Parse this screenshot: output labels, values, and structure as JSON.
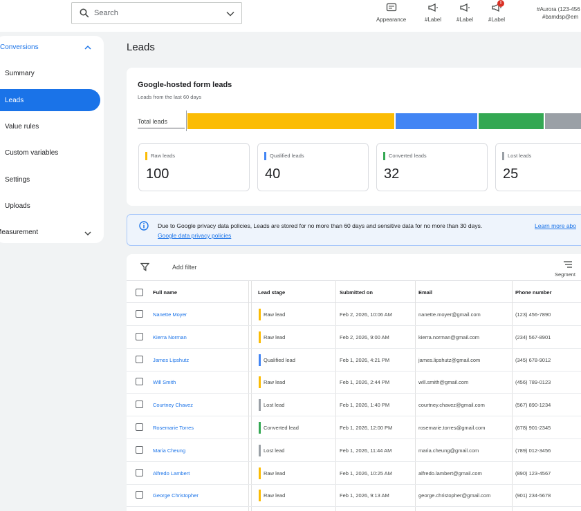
{
  "search": {
    "placeholder": "Search"
  },
  "top_icons": [
    {
      "label": "Appearance",
      "icon": "palette-icon"
    },
    {
      "label": "#Label",
      "icon": "megaphone-icon"
    },
    {
      "label": "#Label",
      "icon": "megaphone-icon"
    },
    {
      "label": "#Label",
      "icon": "megaphone-icon",
      "badge": "!"
    }
  ],
  "account": {
    "line1": "#Aurora (123-456",
    "line2": "#bamdsp@em"
  },
  "sidebar": {
    "section": "Conversions",
    "items": [
      "Summary",
      "Leads",
      "Value rules",
      "Custom variables",
      "Settings",
      "Uploads"
    ],
    "active": "Leads",
    "footer": "Measurement"
  },
  "page": {
    "title": "Leads"
  },
  "summary_card": {
    "title": "Google-hosted form leads",
    "subtitle": "Leads from the last 60 days",
    "total_label": "Total leads",
    "stats": [
      {
        "label": "Raw leads",
        "value": "100",
        "color": "#fbbc04"
      },
      {
        "label": "Qualified leads",
        "value": "40",
        "color": "#4285f4"
      },
      {
        "label": "Converted leads",
        "value": "32",
        "color": "#34a853"
      },
      {
        "label": "Lost leads",
        "value": "25",
        "color": "#9aa0a6"
      }
    ]
  },
  "notice": {
    "message": "Due to Google privacy data policies, Leads are stored for no more than 60 days and sensitive data for no more than 30 days.",
    "link1": "Learn more abo",
    "link2": "Google data privacy policies"
  },
  "table": {
    "add_filter": "Add filter",
    "segment": "Segment",
    "columns": [
      "Full name",
      "Lead stage",
      "Submitted on",
      "Email",
      "Phone number"
    ],
    "rows": [
      {
        "name": "Nanette Moyer",
        "stage": "Raw lead",
        "stage_color": "#fbbc04",
        "submitted": "Feb 2, 2026, 10:06 AM",
        "email": "nanette.moyer@gmail.com",
        "phone": "(123) 456-7890"
      },
      {
        "name": "Kierra Norman",
        "stage": "Raw lead",
        "stage_color": "#fbbc04",
        "submitted": "Feb 2, 2026, 9:00 AM",
        "email": "kierra.norman@gmail.com",
        "phone": "(234) 567-8901"
      },
      {
        "name": "James Lipshutz",
        "stage": "Qualified lead",
        "stage_color": "#4285f4",
        "submitted": "Feb 1, 2026, 4:21 PM",
        "email": "james.lipshutz@gmail.com",
        "phone": "(345) 678-9012"
      },
      {
        "name": "Will Smith",
        "stage": "Raw lead",
        "stage_color": "#fbbc04",
        "submitted": "Feb 1, 2026, 2:44 PM",
        "email": "will.smith@gmail.com",
        "phone": "(456) 789-0123"
      },
      {
        "name": "Courtney Chavez",
        "stage": "Lost lead",
        "stage_color": "#9aa0a6",
        "submitted": "Feb 1, 2026, 1:40 PM",
        "email": "courtney.chavez@gmail.com",
        "phone": "(567) 890-1234"
      },
      {
        "name": "Rosemarie Torres",
        "stage": "Converted lead",
        "stage_color": "#34a853",
        "submitted": "Feb 1, 2026, 12:00 PM",
        "email": "rosemarie.torres@gmail.com",
        "phone": "(678) 901-2345"
      },
      {
        "name": "Maria Cheung",
        "stage": "Lost lead",
        "stage_color": "#9aa0a6",
        "submitted": "Feb 1, 2026, 11:44 AM",
        "email": "maria.cheung@gmail.com",
        "phone": "(789) 012-3456"
      },
      {
        "name": "Alfredo Lambert",
        "stage": "Raw lead",
        "stage_color": "#fbbc04",
        "submitted": "Feb 1, 2026, 10:25 AM",
        "email": "alfredo.lambert@gmail.com",
        "phone": "(890) 123-4567"
      },
      {
        "name": "George Christopher",
        "stage": "Raw lead",
        "stage_color": "#fbbc04",
        "submitted": "Feb 1, 2026, 9:13 AM",
        "email": "george.christopher@gmail.com",
        "phone": "(901) 234-5678"
      }
    ]
  }
}
